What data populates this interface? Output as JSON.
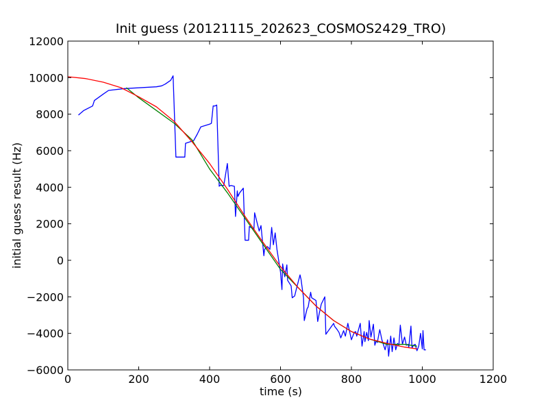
{
  "chart_data": {
    "type": "line",
    "title": "Init guess (20121115_202623_COSMOS2429_TRO)",
    "xlabel": "time (s)",
    "ylabel": "initial guess result (Hz)",
    "xlim": [
      0,
      1200
    ],
    "ylim": [
      -6000,
      12000
    ],
    "xticks": [
      0,
      200,
      400,
      600,
      800,
      1000,
      1200
    ],
    "yticks": [
      -6000,
      -4000,
      -2000,
      0,
      2000,
      4000,
      6000,
      8000,
      10000,
      12000
    ],
    "xtick_labels": [
      "0",
      "200",
      "400",
      "600",
      "800",
      "1000",
      "1200"
    ],
    "ytick_labels": [
      "−6000",
      "−4000",
      "−2000",
      "0",
      "2000",
      "4000",
      "6000",
      "8000",
      "10000",
      "12000"
    ],
    "grid": false,
    "legend": "none",
    "series": [
      {
        "color": "#0000ff",
        "x": [
          30,
          45,
          60,
          70,
          75,
          100,
          115,
          160,
          250,
          265,
          275,
          290,
          297,
          305,
          310,
          330,
          332,
          355,
          365,
          375,
          400,
          405,
          410,
          415,
          420,
          427,
          428,
          440,
          450,
          455,
          460,
          470,
          473,
          478,
          480,
          485,
          495,
          500,
          510,
          512,
          525,
          527,
          540,
          545,
          553,
          555,
          563,
          570,
          575,
          580,
          585,
          590,
          600,
          604,
          606,
          612,
          618,
          620,
          630,
          633,
          640,
          645,
          655,
          658,
          665,
          667,
          675,
          678,
          685,
          688,
          700,
          705,
          710,
          715,
          725,
          728,
          750,
          752,
          760,
          765,
          770,
          778,
          783,
          790,
          800,
          808,
          812,
          815,
          825,
          830,
          836,
          838,
          843,
          848,
          850,
          855,
          862,
          866,
          870,
          873,
          880,
          886,
          890,
          895,
          902,
          905,
          911,
          915,
          920,
          925,
          930,
          934,
          938,
          944,
          950,
          955,
          960,
          962,
          968,
          971,
          975,
          980,
          985,
          990,
          995,
          1000,
          1002,
          1005,
          1010
        ],
        "y": [
          7950,
          8200,
          8350,
          8450,
          8750,
          9100,
          9300,
          9400,
          9500,
          9550,
          9650,
          9850,
          10100,
          5650,
          5650,
          5650,
          6400,
          6550,
          6900,
          7300,
          7450,
          7500,
          8450,
          8450,
          8500,
          4050,
          4100,
          4100,
          5300,
          4050,
          4100,
          4050,
          2400,
          3800,
          3500,
          3700,
          3950,
          1100,
          1100,
          1850,
          1700,
          2600,
          1600,
          1900,
          250,
          600,
          750,
          600,
          1800,
          850,
          1500,
          600,
          -650,
          -1600,
          -200,
          -900,
          -250,
          -1100,
          -1400,
          -2050,
          -1950,
          -1550,
          -800,
          -1050,
          -2050,
          -3300,
          -2650,
          -2550,
          -1750,
          -2050,
          -2200,
          -3350,
          -2850,
          -2400,
          -2000,
          -4050,
          -3450,
          -3600,
          -3800,
          -3950,
          -4250,
          -3850,
          -4150,
          -3450,
          -4350,
          -3950,
          -3900,
          -4150,
          -3450,
          -4700,
          -3900,
          -4450,
          -3950,
          -4400,
          -3300,
          -4200,
          -3500,
          -4650,
          -4400,
          -4500,
          -3800,
          -4350,
          -4600,
          -4900,
          -4350,
          -5250,
          -4150,
          -5000,
          -4250,
          -4900,
          -4550,
          -4650,
          -3550,
          -4600,
          -4200,
          -4650,
          -4600,
          -4750,
          -3600,
          -4800,
          -4650,
          -4600,
          -4950,
          -4700,
          -4000,
          -4850,
          -3850,
          -4900,
          -4900
        ]
      },
      {
        "color": "#008000",
        "x": [
          165,
          200,
          250,
          300,
          350,
          400,
          450,
          500,
          550,
          600,
          650,
          700,
          750,
          800,
          850,
          900,
          950,
          985
        ],
        "y": [
          9450,
          8900,
          8200,
          7500,
          6600,
          5000,
          3700,
          2300,
          900,
          -500,
          -1500,
          -2500,
          -3300,
          -3900,
          -4300,
          -4600,
          -4600,
          -4700
        ]
      },
      {
        "color": "#ff0000",
        "x": [
          0,
          50,
          100,
          150,
          200,
          250,
          300,
          350,
          400,
          450,
          500,
          550,
          600,
          650,
          700,
          750,
          800,
          850,
          900,
          950,
          985
        ],
        "y": [
          10050,
          9950,
          9750,
          9450,
          8950,
          8400,
          7600,
          6500,
          5300,
          3900,
          2400,
          1000,
          -350,
          -1500,
          -2500,
          -3300,
          -3900,
          -4300,
          -4550,
          -4750,
          -4850
        ]
      }
    ]
  }
}
